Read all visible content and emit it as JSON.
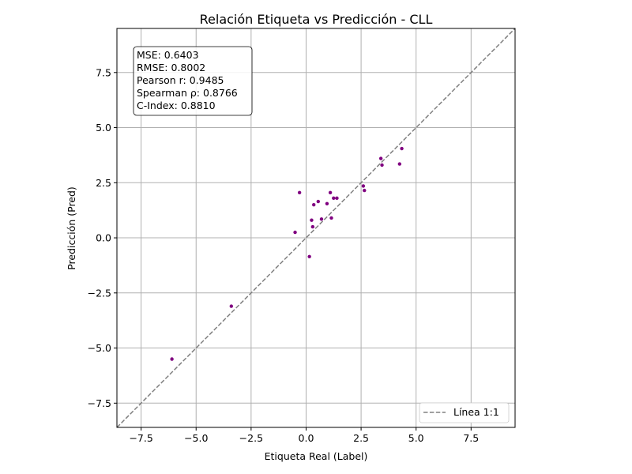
{
  "chart_data": {
    "type": "scatter",
    "title": "Relación Etiqueta vs Predicción - CLL",
    "xlabel": "Etiqueta Real (Label)",
    "ylabel": "Predicción (Pred)",
    "xlim": [
      -8.6,
      9.5
    ],
    "ylim": [
      -8.6,
      9.5
    ],
    "xticks": [
      -7.5,
      -5.0,
      -2.5,
      0.0,
      2.5,
      5.0,
      7.5
    ],
    "xtick_labels": [
      "−7.5",
      "−5.0",
      "−2.5",
      "0.0",
      "2.5",
      "5.0",
      "7.5"
    ],
    "yticks": [
      -7.5,
      -5.0,
      -2.5,
      0.0,
      2.5,
      5.0,
      7.5
    ],
    "ytick_labels": [
      "−7.5",
      "−5.0",
      "−2.5",
      "0.0",
      "2.5",
      "5.0",
      "7.5"
    ],
    "grid": true,
    "point_color": "#800080",
    "line_color": "#808080",
    "series": [
      {
        "name": "points",
        "x": [
          -6.1,
          -3.4,
          -0.5,
          -0.3,
          0.15,
          0.25,
          0.3,
          0.35,
          0.55,
          0.7,
          0.95,
          1.1,
          1.15,
          1.25,
          1.4,
          2.6,
          2.65,
          3.4,
          3.45,
          4.25,
          4.35
        ],
        "y": [
          -5.5,
          -3.1,
          0.25,
          2.05,
          -0.85,
          0.8,
          0.5,
          1.5,
          1.65,
          0.85,
          1.55,
          2.05,
          0.9,
          1.8,
          1.8,
          2.35,
          2.15,
          3.6,
          3.3,
          3.35,
          4.05
        ]
      }
    ],
    "reference_line": {
      "name": "Línea 1:1",
      "x": [
        -8.6,
        9.5
      ],
      "y": [
        -8.6,
        9.5
      ]
    },
    "stats": [
      "MSE: 0.6403",
      "RMSE: 0.8002",
      "Pearson r: 0.9485",
      "Spearman ρ: 0.8766",
      "C-Index: 0.8810"
    ],
    "legend": {
      "label": "Línea 1:1",
      "position": "lower-right"
    }
  }
}
